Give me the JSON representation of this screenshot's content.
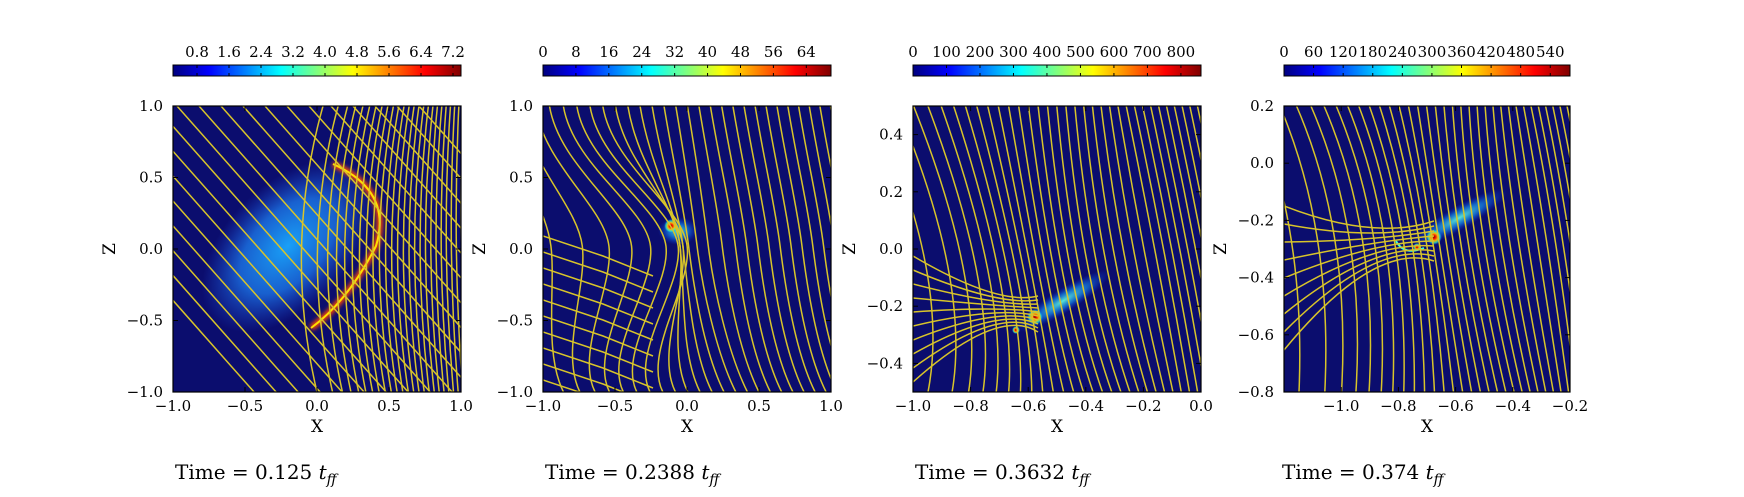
{
  "colormap": [
    "#00007f",
    "#0000ff",
    "#007fff",
    "#00ffff",
    "#7fff7f",
    "#ffff00",
    "#ff7f00",
    "#ff0000",
    "#7f0000"
  ],
  "field_line_color": "#d8c42a",
  "background_color": "#0b0d6e",
  "chart_data": [
    {
      "type": "heatmap",
      "title": "",
      "xlabel": "X",
      "ylabel": "Z",
      "xlim": [
        -1.0,
        1.0
      ],
      "ylim": [
        -1.0,
        1.0
      ],
      "xticks": [
        -1.0,
        -0.5,
        0.0,
        0.5,
        1.0
      ],
      "xtick_labels": [
        "−1.0",
        "−0.5",
        "0.0",
        "0.5",
        "1.0"
      ],
      "yticks": [
        -1.0,
        -0.5,
        0.0,
        0.5,
        1.0
      ],
      "ytick_labels": [
        "−1.0",
        "−0.5",
        "0.0",
        "0.5",
        "1.0"
      ],
      "colorbar": {
        "range": [
          0.2,
          7.4
        ],
        "ticks": [
          0.8,
          1.6,
          2.4,
          3.2,
          4.0,
          4.8,
          5.6,
          6.4,
          7.2
        ],
        "tick_labels": [
          "0.8",
          "1.6",
          "2.4",
          "3.2",
          "4.0",
          "4.8",
          "5.6",
          "6.4",
          "7.2"
        ]
      },
      "caption": {
        "prefix": "Time = 0.125 ",
        "t": "t",
        "sub": "ff"
      }
    },
    {
      "type": "heatmap",
      "title": "",
      "xlabel": "X",
      "ylabel": "Z",
      "xlim": [
        -1.0,
        1.0
      ],
      "ylim": [
        -1.0,
        1.0
      ],
      "xticks": [
        -1.0,
        -0.5,
        0.0,
        0.5,
        1.0
      ],
      "xtick_labels": [
        "−1.0",
        "−0.5",
        "0.0",
        "0.5",
        "1.0"
      ],
      "yticks": [
        -1.0,
        -0.5,
        0.0,
        0.5,
        1.0
      ],
      "ytick_labels": [
        "−1.0",
        "−0.5",
        "0.0",
        "0.5",
        "1.0"
      ],
      "colorbar": {
        "range": [
          0,
          70
        ],
        "ticks": [
          0,
          8,
          16,
          24,
          32,
          40,
          48,
          56,
          64
        ],
        "tick_labels": [
          "0",
          "8",
          "16",
          "24",
          "32",
          "40",
          "48",
          "56",
          "64"
        ]
      },
      "caption": {
        "prefix": "Time = 0.2388 ",
        "t": "t",
        "sub": "ff"
      }
    },
    {
      "type": "heatmap",
      "title": "",
      "xlabel": "X",
      "ylabel": "Z",
      "xlim": [
        -1.0,
        0.0
      ],
      "ylim": [
        -0.5,
        0.5
      ],
      "xticks": [
        -1.0,
        -0.8,
        -0.6,
        -0.4,
        -0.2,
        0.0
      ],
      "xtick_labels": [
        "−1.0",
        "−0.8",
        "−0.6",
        "−0.4",
        "−0.2",
        "0.0"
      ],
      "yticks": [
        -0.4,
        -0.2,
        0.0,
        0.2,
        0.4
      ],
      "ytick_labels": [
        "−0.4",
        "−0.2",
        "0.0",
        "0.2",
        "0.4"
      ],
      "colorbar": {
        "range": [
          0,
          860
        ],
        "ticks": [
          0,
          100,
          200,
          300,
          400,
          500,
          600,
          700,
          800
        ],
        "tick_labels": [
          "0",
          "100",
          "200",
          "300",
          "400",
          "500",
          "600",
          "700",
          "800"
        ]
      },
      "caption": {
        "prefix": "Time = 0.3632 ",
        "t": "t",
        "sub": "ff"
      }
    },
    {
      "type": "heatmap",
      "title": "",
      "xlabel": "X",
      "ylabel": "Z",
      "xlim": [
        -1.2,
        -0.2
      ],
      "ylim": [
        -0.8,
        0.2
      ],
      "xticks": [
        -1.0,
        -0.8,
        -0.6,
        -0.4,
        -0.2
      ],
      "xtick_labels": [
        "−1.0",
        "−0.8",
        "−0.6",
        "−0.4",
        "−0.2"
      ],
      "yticks": [
        -0.8,
        -0.6,
        -0.4,
        -0.2,
        0.0,
        0.2
      ],
      "ytick_labels": [
        "−0.8",
        "−0.6",
        "−0.4",
        "−0.2",
        "0.0",
        "0.2"
      ],
      "colorbar": {
        "range": [
          0,
          580
        ],
        "ticks": [
          0,
          60,
          120,
          180,
          240,
          300,
          360,
          420,
          480,
          540
        ],
        "tick_labels": [
          "0",
          "60",
          "120",
          "180",
          "240",
          "300",
          "360",
          "420",
          "480",
          "540"
        ]
      },
      "caption": {
        "prefix": "Time = 0.374 ",
        "t": "t",
        "sub": "ff"
      }
    }
  ]
}
